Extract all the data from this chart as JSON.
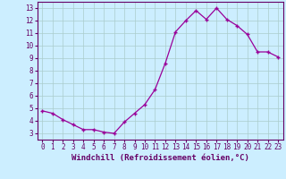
{
  "x": [
    0,
    1,
    2,
    3,
    4,
    5,
    6,
    7,
    8,
    9,
    10,
    11,
    12,
    13,
    14,
    15,
    16,
    17,
    18,
    19,
    20,
    21,
    22,
    23
  ],
  "y": [
    4.8,
    4.6,
    4.1,
    3.7,
    3.3,
    3.3,
    3.1,
    3.0,
    3.9,
    4.6,
    5.3,
    6.5,
    8.6,
    11.1,
    12.0,
    12.8,
    12.1,
    13.0,
    12.1,
    11.6,
    10.9,
    9.5,
    9.5,
    9.1
  ],
  "line_color": "#990099",
  "marker": "+",
  "marker_size": 3,
  "linewidth": 0.9,
  "xlabel": "Windchill (Refroidissement éolien,°C)",
  "xlabel_fontsize": 6.5,
  "ylim": [
    2.5,
    13.5
  ],
  "xlim": [
    -0.5,
    23.5
  ],
  "yticks": [
    3,
    4,
    5,
    6,
    7,
    8,
    9,
    10,
    11,
    12,
    13
  ],
  "xticks": [
    0,
    1,
    2,
    3,
    4,
    5,
    6,
    7,
    8,
    9,
    10,
    11,
    12,
    13,
    14,
    15,
    16,
    17,
    18,
    19,
    20,
    21,
    22,
    23
  ],
  "tick_fontsize": 5.5,
  "bg_color": "#cceeff",
  "grid_color": "#aacccc",
  "tick_color": "#660066",
  "spine_color": "#660066"
}
